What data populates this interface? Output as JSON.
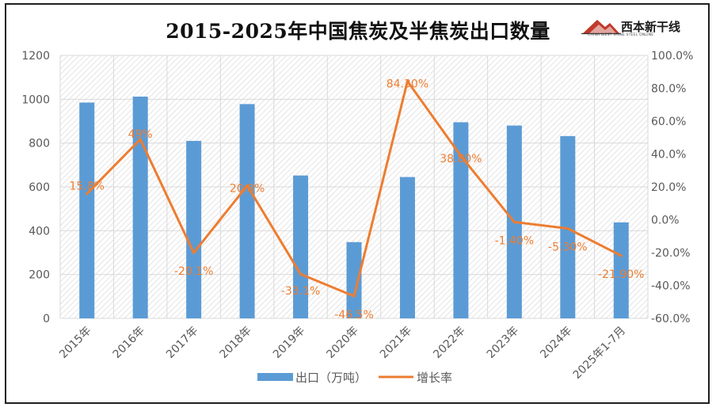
{
  "page_title": "2015-2025年中国焦炭及半焦炭出口数量",
  "logo": {
    "brand": "西本新干线",
    "tagline": "CHINA WEST SHINE STEEL ONLINE"
  },
  "colors": {
    "bar": "#5B9BD5",
    "line": "#ED7D31",
    "label": "#ED7D31",
    "axis_text": "#595959",
    "grid": "#d9d9d9"
  },
  "chart_data": {
    "type": "bar",
    "title": "2015-2025年中国焦炭及半焦炭出口数量",
    "categories": [
      "2015年",
      "2016年",
      "2017年",
      "2018年",
      "2019年",
      "2020年",
      "2021年",
      "2022年",
      "2023年",
      "2024年",
      "2025年1-7月"
    ],
    "series": [
      {
        "name": "出口（万吨）",
        "type": "bar",
        "axis": "left",
        "values": [
          985,
          1012,
          810,
          978,
          652,
          348,
          645,
          895,
          880,
          832,
          438
        ]
      },
      {
        "name": "增长率",
        "type": "line",
        "axis": "right",
        "values": [
          15.8,
          49.0,
          -20.1,
          20.8,
          -33.1,
          -46.5,
          84.3,
          38.8,
          -1.4,
          -5.3,
          -21.9
        ],
        "labels": [
          "15.8%",
          "49%",
          "-20.1%",
          "20.8%",
          "-33.1%",
          "-46.5%",
          "84.30%",
          "38.80%",
          "-1.40%",
          "-5.30%",
          "-21.90%"
        ]
      }
    ],
    "y_left": {
      "ylim": [
        0,
        1200
      ],
      "ticks": [
        "0",
        "200",
        "400",
        "600",
        "800",
        "1000",
        "1200"
      ]
    },
    "y_right": {
      "ylim": [
        -60,
        100
      ],
      "ticks": [
        "-60.0%",
        "-40.0%",
        "-20.0%",
        "0.0%",
        "20.0%",
        "40.0%",
        "60.0%",
        "80.0%",
        "100.0%"
      ]
    },
    "grid": true,
    "legend_position": "bottom"
  }
}
